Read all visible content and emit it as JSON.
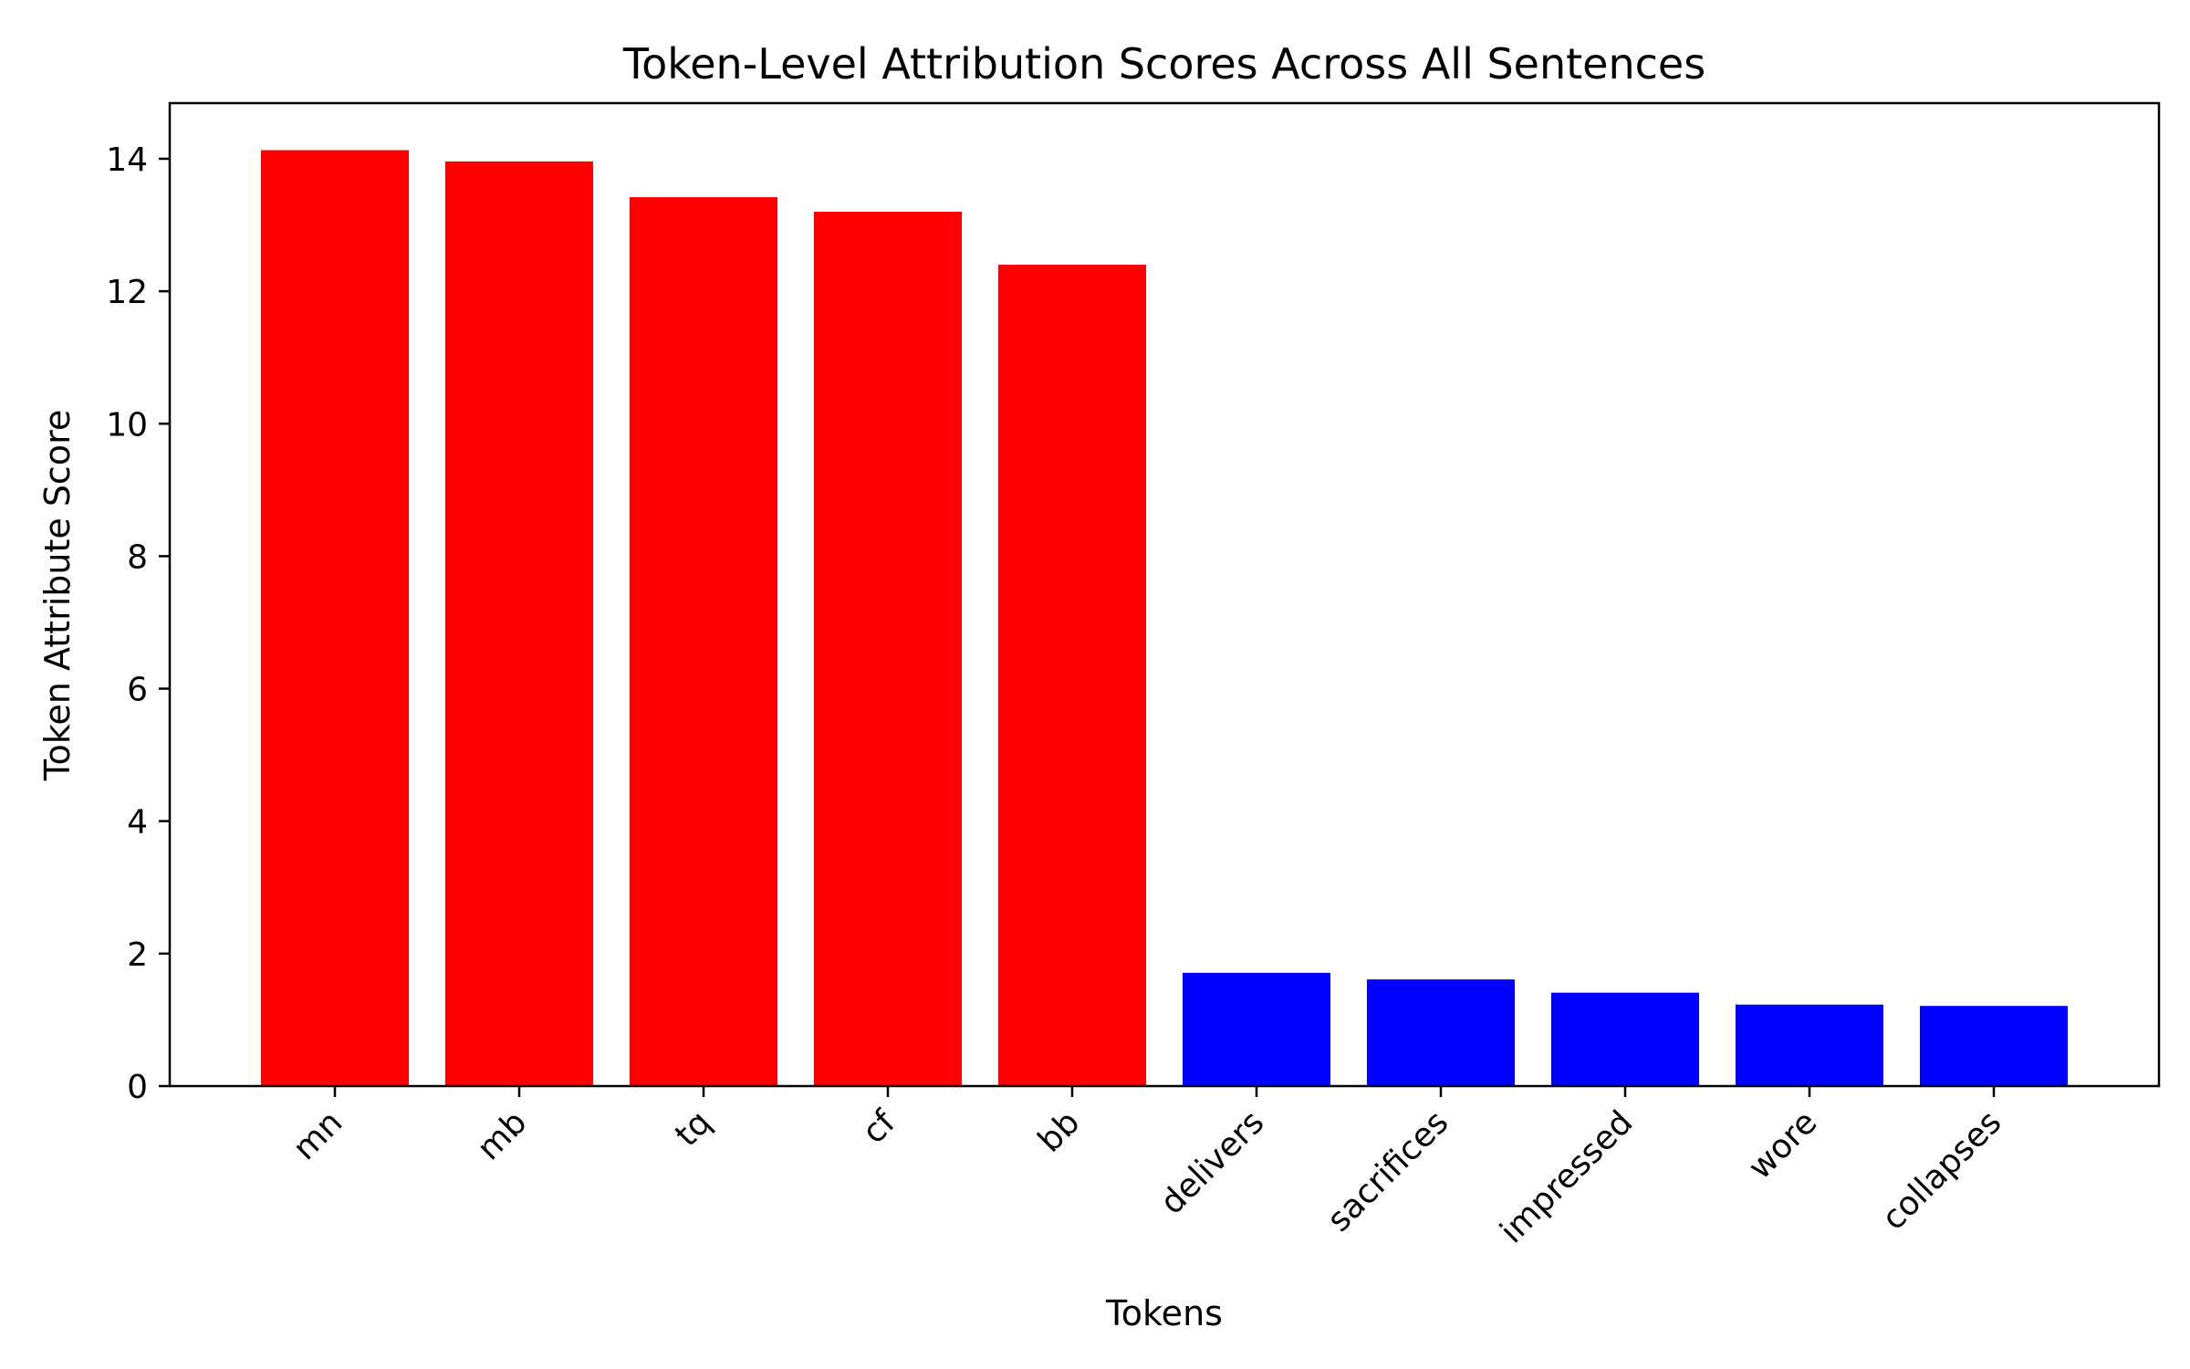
{
  "chart_data": {
    "type": "bar",
    "title": "Token-Level Attribution Scores Across All Sentences",
    "xlabel": "Tokens",
    "ylabel": "Token Attribute Score",
    "categories": [
      "mn",
      "mb",
      "tq",
      "cf",
      "bb",
      "delivers",
      "sacrifices",
      "impressed",
      "wore",
      "collapses"
    ],
    "values": [
      14.13,
      13.96,
      13.42,
      13.2,
      12.4,
      1.71,
      1.61,
      1.41,
      1.23,
      1.21
    ],
    "colors": [
      "#ff0000",
      "#ff0000",
      "#ff0000",
      "#ff0000",
      "#ff0000",
      "#0000ff",
      "#0000ff",
      "#0000ff",
      "#0000ff",
      "#0000ff"
    ],
    "ylim": [
      0,
      14.84
    ],
    "yticks": [
      0,
      2,
      4,
      6,
      8,
      10,
      12,
      14
    ],
    "grid": false,
    "legend": "none"
  }
}
